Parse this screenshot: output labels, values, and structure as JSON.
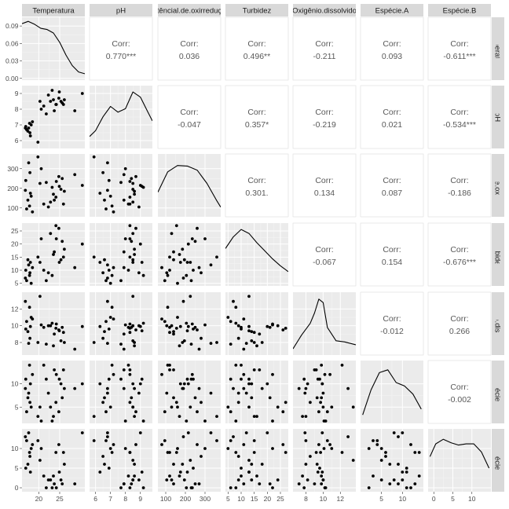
{
  "chart_data": {
    "type": "scatter",
    "layout": "pairs-plot matrix",
    "variables": [
      "Temperatura",
      "pH",
      "Potêncial.de.oxirredução",
      "Turbidez",
      "Oxigênio.dissolvido",
      "Espécie.A",
      "Espécie.B"
    ],
    "top_strip_labels": [
      "Temperatura",
      "pH",
      "têncial.de.oxirreduç",
      "Turbidez",
      "Oxigênio.dissolvido",
      "Espécie.A",
      "Espécie.B"
    ],
    "right_strip_labels": [
      "Temperatura",
      "pH",
      "têncial.de.oxirreduç",
      "Turbidez",
      "Oxigênio.dissolvido",
      "Espécie.A",
      "Espécie.B"
    ],
    "corr_label": "Corr:",
    "correlations": [
      {
        "row": 0,
        "col": 1,
        "value": "0.770***"
      },
      {
        "row": 0,
        "col": 2,
        "value": "0.036"
      },
      {
        "row": 0,
        "col": 3,
        "value": "0.496**"
      },
      {
        "row": 0,
        "col": 4,
        "value": "-0.211"
      },
      {
        "row": 0,
        "col": 5,
        "value": "0.093"
      },
      {
        "row": 0,
        "col": 6,
        "value": "-0.611***"
      },
      {
        "row": 1,
        "col": 2,
        "value": "-0.047"
      },
      {
        "row": 1,
        "col": 3,
        "value": "0.357*"
      },
      {
        "row": 1,
        "col": 4,
        "value": "-0.219"
      },
      {
        "row": 1,
        "col": 5,
        "value": "0.021"
      },
      {
        "row": 1,
        "col": 6,
        "value": "-0.534***"
      },
      {
        "row": 2,
        "col": 3,
        "value": "0.301."
      },
      {
        "row": 2,
        "col": 4,
        "value": "0.134"
      },
      {
        "row": 2,
        "col": 5,
        "value": "0.087"
      },
      {
        "row": 2,
        "col": 6,
        "value": "-0.186"
      },
      {
        "row": 3,
        "col": 4,
        "value": "-0.067"
      },
      {
        "row": 3,
        "col": 5,
        "value": "0.154"
      },
      {
        "row": 3,
        "col": 6,
        "value": "-0.676***"
      },
      {
        "row": 4,
        "col": 5,
        "value": "-0.012"
      },
      {
        "row": 4,
        "col": 6,
        "value": "0.266"
      },
      {
        "row": 5,
        "col": 6,
        "value": "-0.002"
      }
    ],
    "x_axes": [
      {
        "range": [
          16,
          31
        ],
        "ticks": [
          20,
          25
        ],
        "labels": [
          "20",
          "25"
        ]
      },
      {
        "range": [
          5.6,
          9.8
        ],
        "ticks": [
          6,
          7,
          8,
          9
        ],
        "labels": [
          "6",
          "7",
          "8",
          "9"
        ]
      },
      {
        "range": [
          60,
          380
        ],
        "ticks": [
          100,
          200,
          300
        ],
        "labels": [
          "100",
          "200",
          "300"
        ]
      },
      {
        "range": [
          4,
          28
        ],
        "ticks": [
          5,
          10,
          15,
          20,
          25
        ],
        "labels": [
          "5",
          "10",
          "15",
          "20",
          "25"
        ]
      },
      {
        "range": [
          6.5,
          13.8
        ],
        "ticks": [
          8,
          10,
          12
        ],
        "labels": [
          "8",
          "10",
          "12"
        ]
      },
      {
        "range": [
          0,
          15
        ],
        "ticks": [
          5,
          10
        ],
        "labels": [
          "5",
          "10"
        ]
      },
      {
        "range": [
          -1.5,
          15
        ],
        "ticks": [
          0,
          5,
          10
        ],
        "labels": [
          "0",
          "5",
          "10"
        ]
      }
    ],
    "y_axes": [
      {
        "range": [
          -0.003,
          0.105
        ],
        "ticks": [
          0.0,
          0.03,
          0.06,
          0.09
        ],
        "labels": [
          "0.00",
          "0.03",
          "0.06",
          "0.09"
        ]
      },
      {
        "range": [
          5.5,
          9.5
        ],
        "ticks": [
          6,
          7,
          8,
          9
        ],
        "labels": [
          "6",
          "7",
          "8",
          "9"
        ]
      },
      {
        "range": [
          55,
          375
        ],
        "ticks": [
          100,
          200,
          300
        ],
        "labels": [
          "100",
          "200",
          "300"
        ]
      },
      {
        "range": [
          4,
          28
        ],
        "ticks": [
          5,
          10,
          15,
          20,
          25
        ],
        "labels": [
          "5",
          "10",
          "15",
          "20",
          "25"
        ]
      },
      {
        "range": [
          6.5,
          14
        ],
        "ticks": [
          8,
          10,
          12
        ],
        "labels": [
          "8",
          "10",
          "12"
        ]
      },
      {
        "range": [
          1.5,
          15
        ],
        "ticks": [
          5,
          10
        ],
        "labels": [
          "5",
          "10"
        ]
      },
      {
        "range": [
          -1,
          15
        ],
        "ticks": [
          0,
          5,
          10
        ],
        "labels": [
          "0",
          "5",
          "10"
        ]
      }
    ],
    "data": {
      "Temperatura": [
        17.1,
        17.8,
        16.9,
        17.6,
        18.2,
        17.4,
        18.5,
        17.9,
        16.8,
        18.0,
        19.8,
        20.6,
        21.2,
        21.8,
        20.3,
        22.3,
        23.7,
        24.1,
        24.8,
        25.3,
        24.2,
        23.5,
        25.6,
        26.1,
        24.9,
        22.8,
        23.2,
        25.9,
        28.6,
        30.4
      ],
      "pH": [
        6.7,
        7.1,
        6.9,
        6.8,
        7.0,
        6.6,
        7.2,
        6.5,
        6.8,
        6.3,
        5.9,
        8.0,
        8.2,
        7.7,
        8.5,
        8.9,
        7.9,
        8.3,
        8.7,
        8.5,
        8.3,
        8.6,
        8.4,
        8.6,
        9.1,
        8.5,
        9.2,
        8.3,
        7.9,
        9.0
      ],
      "Potêncial.de.oxirredução": [
        95,
        110,
        240,
        330,
        160,
        140,
        80,
        280,
        190,
        175,
        360,
        300,
        120,
        230,
        225,
        105,
        140,
        155,
        260,
        195,
        235,
        170,
        250,
        185,
        210,
        130,
        205,
        120,
        270,
        215
      ],
      "Turbidez": [
        6.0,
        8.0,
        10.0,
        12.0,
        5.0,
        14.0,
        11.0,
        9.0,
        7.0,
        13.0,
        15.0,
        22.0,
        10.0,
        6.0,
        13.0,
        9.0,
        17.0,
        27.0,
        26.0,
        14.0,
        22.0,
        16.0,
        21.0,
        18.0,
        13.0,
        24.0,
        8.0,
        15.0,
        11.0,
        20.0
      ],
      "Oxigênio.dissolvido": [
        10.5,
        12.2,
        9.6,
        7.9,
        11.0,
        9.3,
        10.8,
        8.5,
        12.9,
        9.9,
        8.0,
        10.1,
        9.8,
        7.8,
        13.5,
        10.0,
        9.0,
        9.7,
        9.5,
        8.2,
        10.2,
        7.6,
        9.8,
        8.0,
        9.4,
        10.0,
        10.3,
        9.2,
        7.2,
        9.9
      ],
      "Espécie.A": [
        4,
        14,
        11,
        8,
        5,
        7,
        12,
        6,
        9,
        10,
        3,
        2,
        14,
        11,
        5,
        8,
        13,
        6,
        4,
        10,
        12,
        3,
        7,
        9,
        11,
        5,
        2,
        13,
        9,
        10
      ],
      "Espécie.B": [
        12,
        9,
        5,
        14,
        10,
        6,
        11,
        8,
        13,
        4,
        12,
        10,
        3,
        0,
        7,
        2,
        1,
        9,
        11,
        2,
        0,
        3,
        1,
        6,
        4,
        2,
        0,
        9,
        1,
        14
      ]
    },
    "density_curves": [
      {
        "x": [
          16.0,
          17.5,
          19.0,
          20.5,
          22.0,
          23.5,
          25.0,
          26.5,
          28.0,
          29.5,
          31.0
        ],
        "y": [
          0.094,
          0.098,
          0.093,
          0.086,
          0.084,
          0.078,
          0.062,
          0.04,
          0.022,
          0.011,
          0.008
        ]
      },
      {
        "x": [
          5.6,
          6.0,
          6.5,
          7.0,
          7.5,
          8.0,
          8.5,
          9.0,
          9.5,
          9.8
        ],
        "y": [
          0.18,
          0.28,
          0.52,
          0.7,
          0.6,
          0.66,
          0.95,
          0.86,
          0.6,
          0.45
        ]
      },
      {
        "x": [
          60,
          110,
          160,
          210,
          260,
          310,
          360,
          380
        ],
        "y": [
          0.4,
          0.75,
          0.86,
          0.85,
          0.78,
          0.55,
          0.25,
          0.14
        ]
      },
      {
        "x": [
          4,
          7,
          10,
          13,
          16,
          19,
          22,
          25,
          28
        ],
        "y": [
          0.62,
          0.82,
          0.95,
          0.88,
          0.72,
          0.58,
          0.44,
          0.32,
          0.22
        ]
      },
      {
        "x": [
          6.5,
          7.5,
          8.5,
          9.0,
          9.5,
          10.0,
          10.5,
          11.5,
          12.5,
          13.8
        ],
        "y": [
          0.08,
          0.32,
          0.52,
          0.7,
          0.94,
          0.88,
          0.45,
          0.22,
          0.2,
          0.15
        ]
      },
      {
        "x": [
          0.5,
          2.5,
          4.5,
          6.5,
          8.5,
          10.5,
          12.5,
          14.5
        ],
        "y": [
          0.12,
          0.55,
          0.85,
          0.9,
          0.68,
          0.62,
          0.48,
          0.22
        ]
      },
      {
        "x": [
          -1.0,
          0.5,
          2.5,
          4.5,
          6.5,
          8.5,
          10.5,
          12.5,
          14.5
        ],
        "y": [
          0.58,
          0.8,
          0.88,
          0.82,
          0.78,
          0.8,
          0.8,
          0.66,
          0.38
        ]
      }
    ],
    "grid": true,
    "legend": "none",
    "colors": {
      "panel_bg": "#ebebeb",
      "grid_major": "#ffffff",
      "grid_minor": "#f4f4f4",
      "strip_bg": "#d9d9d9",
      "point": "#000000",
      "curve": "#000000",
      "corr_text": "#595959"
    }
  }
}
